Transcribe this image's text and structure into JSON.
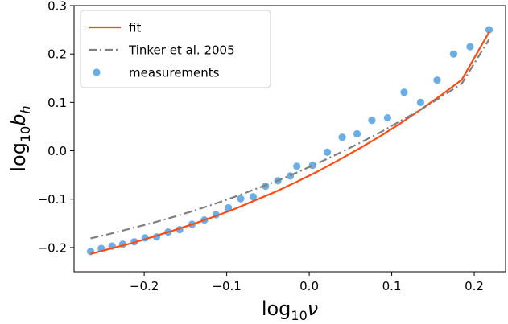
{
  "chart_data": {
    "type": "scatter",
    "title": "",
    "xlabel": {
      "base": "log",
      "sub": "10",
      "sym": "ν"
    },
    "ylabel": {
      "base": "log",
      "sub": "10",
      "sym": "b",
      "symsub": "h"
    },
    "xlim": [
      -0.285,
      0.238
    ],
    "ylim": [
      -0.25,
      0.3
    ],
    "xticks": [
      -0.2,
      -0.1,
      0.0,
      0.1,
      0.2
    ],
    "xtick_labels": [
      "−0.2",
      "−0.1",
      "0.0",
      "0.1",
      "0.2"
    ],
    "yticks": [
      -0.2,
      -0.1,
      0.0,
      0.1,
      0.2,
      0.3
    ],
    "ytick_labels": [
      "−0.2",
      "−0.1",
      "0.0",
      "0.1",
      "0.2",
      "0.3"
    ],
    "grid": false,
    "legend_position": "top-left",
    "series": [
      {
        "name": "fit",
        "kind": "line",
        "style": "solid",
        "color": "#ff4a12",
        "x": [
          -0.265,
          -0.24,
          -0.215,
          -0.19,
          -0.165,
          -0.14,
          -0.115,
          -0.09,
          -0.065,
          -0.04,
          -0.015,
          0.01,
          0.035,
          0.06,
          0.085,
          0.11,
          0.135,
          0.16,
          0.185,
          0.218
        ],
        "y": [
          -0.213,
          -0.202,
          -0.191,
          -0.178,
          -0.165,
          -0.151,
          -0.136,
          -0.12,
          -0.102,
          -0.084,
          -0.064,
          -0.043,
          -0.02,
          0.004,
          0.029,
          0.056,
          0.085,
          0.115,
          0.147,
          0.245
        ]
      },
      {
        "name": "Tinker et al. 2005",
        "kind": "line",
        "style": "dashdot",
        "color": "#808080",
        "x": [
          -0.265,
          -0.24,
          -0.215,
          -0.19,
          -0.165,
          -0.14,
          -0.115,
          -0.09,
          -0.065,
          -0.04,
          -0.015,
          0.01,
          0.035,
          0.06,
          0.085,
          0.11,
          0.135,
          0.16,
          0.185,
          0.218
        ],
        "y": [
          -0.181,
          -0.171,
          -0.16,
          -0.149,
          -0.137,
          -0.124,
          -0.11,
          -0.095,
          -0.079,
          -0.063,
          -0.045,
          -0.026,
          -0.006,
          0.015,
          0.037,
          0.061,
          0.085,
          0.111,
          0.139,
          0.23
        ]
      },
      {
        "name": "measurements",
        "kind": "scatter",
        "color": "#6aaee8",
        "x": [
          -0.265,
          -0.252,
          -0.239,
          -0.226,
          -0.212,
          -0.199,
          -0.185,
          -0.171,
          -0.157,
          -0.142,
          -0.127,
          -0.113,
          -0.098,
          -0.083,
          -0.068,
          -0.053,
          -0.038,
          -0.023,
          -0.015,
          0.004,
          0.022,
          0.04,
          0.058,
          0.076,
          0.095,
          0.115,
          0.135,
          0.155,
          0.175,
          0.195,
          0.218
        ],
        "y": [
          -0.208,
          -0.202,
          -0.197,
          -0.193,
          -0.188,
          -0.18,
          -0.178,
          -0.168,
          -0.163,
          -0.152,
          -0.143,
          -0.132,
          -0.118,
          -0.099,
          -0.095,
          -0.073,
          -0.062,
          -0.052,
          -0.032,
          -0.03,
          -0.003,
          0.028,
          0.035,
          0.063,
          0.068,
          0.121,
          0.1,
          0.146,
          0.2,
          0.215,
          0.25
        ]
      }
    ]
  }
}
